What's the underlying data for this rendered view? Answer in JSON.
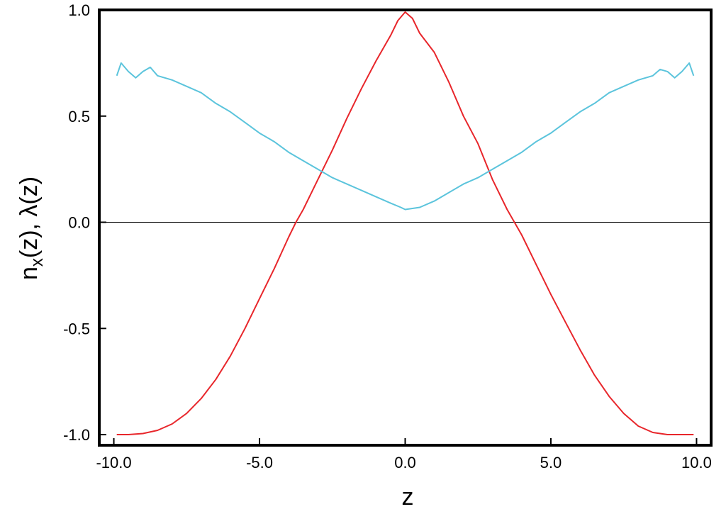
{
  "chart_data": {
    "type": "line",
    "xlabel": "z",
    "ylabel_main": "n",
    "ylabel_sub": "x",
    "ylabel_rest": "(z), λ(z)",
    "xlim": [
      -10.5,
      10.5
    ],
    "ylim": [
      -1.05,
      1.0
    ],
    "xticks": [
      -10.0,
      -5.0,
      0.0,
      5.0,
      10.0
    ],
    "xtick_labels": [
      "-10.0",
      "-5.0",
      "0.0",
      "5.0",
      "10.0"
    ],
    "yticks": [
      -1.0,
      -0.5,
      0.0,
      0.5,
      1.0
    ],
    "ytick_labels": [
      "-1.0",
      "-0.5",
      "0.0",
      "0.5",
      "1.0"
    ],
    "zero_line": true,
    "grid": false,
    "series": [
      {
        "color": "#e8262b",
        "x": [
          -9.9,
          -9.5,
          -9.0,
          -8.5,
          -8.0,
          -7.5,
          -7.0,
          -6.5,
          -6.0,
          -5.5,
          -5.0,
          -4.5,
          -4.0,
          -3.75,
          -3.5,
          -3.0,
          -2.5,
          -2.0,
          -1.5,
          -1.0,
          -0.5,
          -0.25,
          0.0,
          0.25,
          0.5,
          1.0,
          1.5,
          2.0,
          2.5,
          3.0,
          3.5,
          3.75,
          4.0,
          4.5,
          5.0,
          5.5,
          6.0,
          6.5,
          7.0,
          7.5,
          8.0,
          8.5,
          9.0,
          9.5,
          9.9
        ],
        "y": [
          -1.0,
          -1.0,
          -0.995,
          -0.98,
          -0.95,
          -0.9,
          -0.83,
          -0.74,
          -0.63,
          -0.5,
          -0.36,
          -0.22,
          -0.07,
          0.0,
          0.06,
          0.2,
          0.34,
          0.49,
          0.63,
          0.76,
          0.88,
          0.95,
          0.99,
          0.96,
          0.89,
          0.8,
          0.66,
          0.5,
          0.37,
          0.2,
          0.06,
          0.0,
          -0.06,
          -0.2,
          -0.34,
          -0.47,
          -0.6,
          -0.72,
          -0.82,
          -0.9,
          -0.96,
          -0.99,
          -1.0,
          -1.0,
          -1.0
        ]
      },
      {
        "color": "#5bc4dc",
        "x": [
          -9.9,
          -9.75,
          -9.5,
          -9.25,
          -9.0,
          -8.75,
          -8.5,
          -8.0,
          -7.5,
          -7.0,
          -6.5,
          -6.0,
          -5.5,
          -5.0,
          -4.5,
          -4.0,
          -3.5,
          -3.0,
          -2.5,
          -2.0,
          -1.5,
          -1.0,
          -0.5,
          -0.15,
          0.0,
          0.5,
          1.0,
          1.5,
          2.0,
          2.5,
          3.0,
          3.5,
          4.0,
          4.5,
          5.0,
          5.5,
          6.0,
          6.5,
          7.0,
          7.5,
          8.0,
          8.5,
          8.75,
          9.0,
          9.25,
          9.5,
          9.75,
          9.9
        ],
        "y": [
          0.69,
          0.75,
          0.71,
          0.68,
          0.71,
          0.73,
          0.69,
          0.67,
          0.64,
          0.61,
          0.56,
          0.52,
          0.47,
          0.42,
          0.38,
          0.33,
          0.29,
          0.25,
          0.21,
          0.18,
          0.15,
          0.12,
          0.09,
          0.07,
          0.06,
          0.07,
          0.1,
          0.14,
          0.18,
          0.21,
          0.25,
          0.29,
          0.33,
          0.38,
          0.42,
          0.47,
          0.52,
          0.56,
          0.61,
          0.64,
          0.67,
          0.69,
          0.72,
          0.71,
          0.68,
          0.71,
          0.75,
          0.69
        ]
      }
    ]
  }
}
